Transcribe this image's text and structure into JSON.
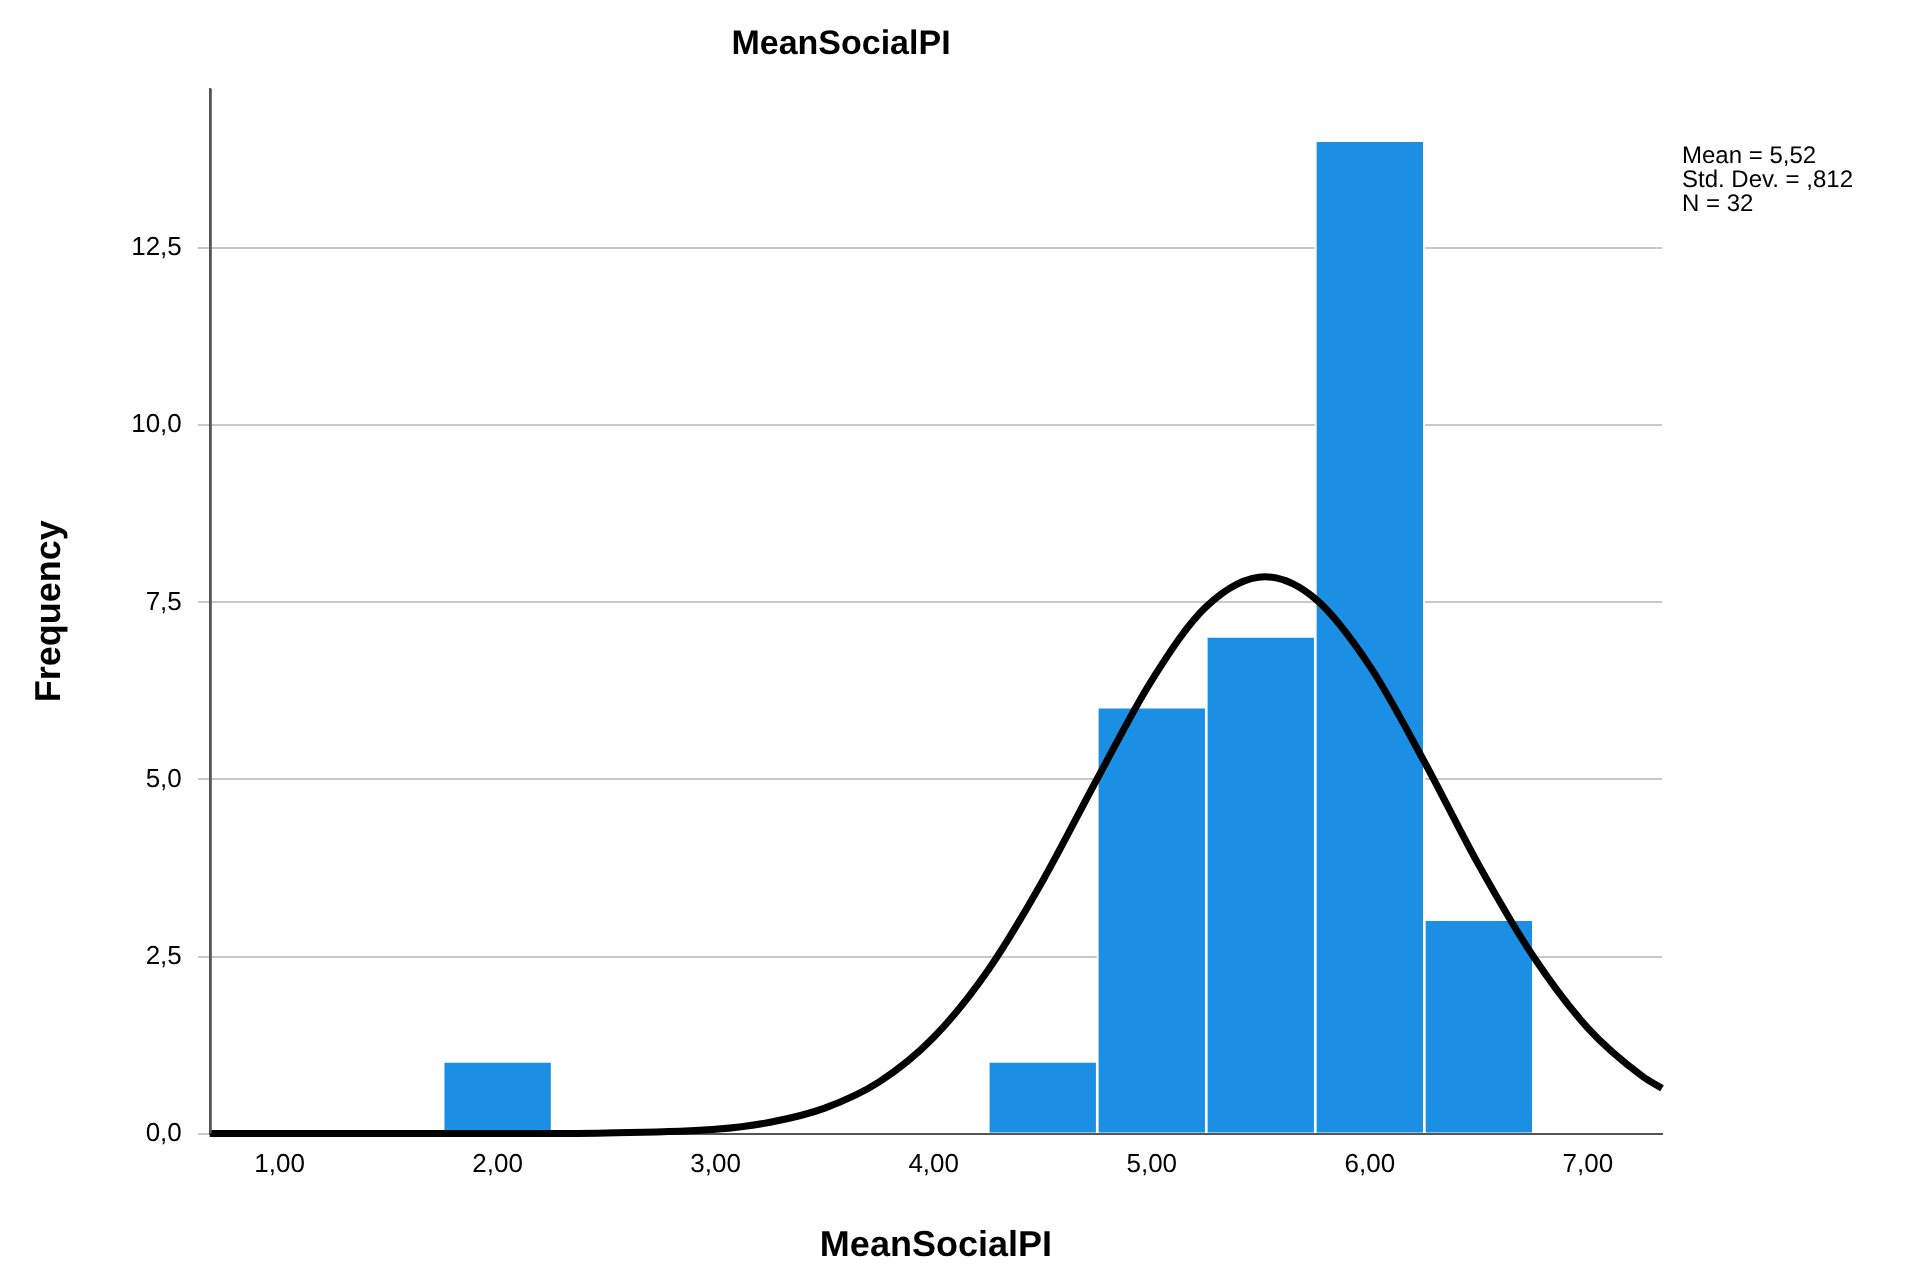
{
  "chart_data": {
    "type": "histogram",
    "title": "MeanSocialPI",
    "xlabel": "MeanSocialPI",
    "ylabel": "Frequency",
    "bins": [
      1.75,
      2.25,
      2.75,
      3.25,
      3.75,
      4.25,
      4.75,
      5.25,
      5.75,
      6.25,
      6.75
    ],
    "values": [
      1,
      0,
      0,
      0,
      0,
      1,
      6,
      7,
      14,
      3
    ],
    "color": "#1a8fe3",
    "series": [
      {
        "type": "line",
        "color": "#000000",
        "x": [
          0.68,
          1.5,
          2.0,
          2.5,
          3.0,
          3.25,
          3.5,
          3.75,
          4.0,
          4.25,
          4.5,
          4.75,
          5.0,
          5.25,
          5.52,
          5.75,
          6.0,
          6.25,
          6.5,
          6.75,
          7.0,
          7.25,
          7.34
        ],
        "values": [
          0,
          0,
          0,
          0.01,
          0.06,
          0.16,
          0.36,
          0.73,
          1.36,
          2.31,
          3.57,
          5.01,
          6.4,
          7.44,
          7.86,
          7.55,
          6.6,
          5.25,
          3.79,
          2.5,
          1.49,
          0.81,
          0.64
        ]
      }
    ],
    "xlim": [
      0.68,
      7.34
    ],
    "xticks": [
      {
        "value": 1,
        "label": "1,00"
      },
      {
        "value": 2,
        "label": "2,00"
      },
      {
        "value": 3,
        "label": "3,00"
      },
      {
        "value": 4,
        "label": "4,00"
      },
      {
        "value": 5,
        "label": "5,00"
      },
      {
        "value": 6,
        "label": "6,00"
      },
      {
        "value": 7,
        "label": "7,00"
      }
    ],
    "ylim": [
      0,
      14.75
    ],
    "yticks": [
      {
        "value": 0,
        "label": "0,0"
      },
      {
        "value": 2.5,
        "label": "2,5"
      },
      {
        "value": 5,
        "label": "5,0"
      },
      {
        "value": 7.5,
        "label": "7,5"
      },
      {
        "value": 10,
        "label": "10,0"
      },
      {
        "value": 12.5,
        "label": "12,5"
      }
    ],
    "grid": "y",
    "legend": false,
    "marker": "none",
    "annotations": [
      "Mean = 5,52",
      "Std. Dev. = ,812",
      "N = 32"
    ]
  }
}
